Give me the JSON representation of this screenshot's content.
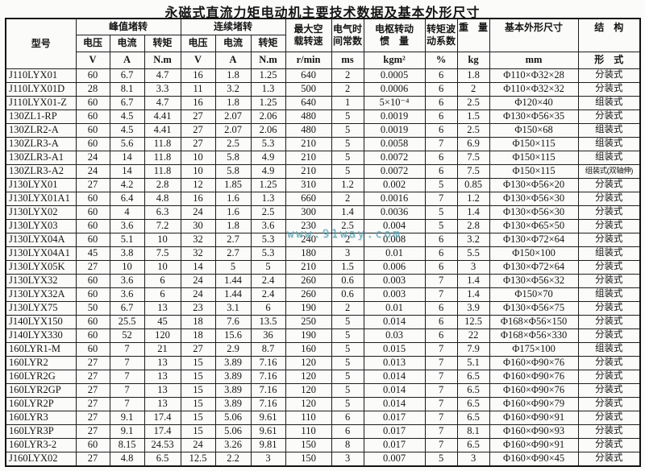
{
  "title": "永磁式直流力矩电动机主要技术数据及基本外形尺寸",
  "watermark": {
    "text": "www.91way.com",
    "color": "#58A4B4"
  },
  "table": {
    "header": {
      "model": "型号",
      "peak_group": "峰值堵转",
      "cont_group": "连续堵转",
      "voltage": "电压",
      "current": "电流",
      "torque": "转矩",
      "volt_unit": "V",
      "curr_unit": "A",
      "torque_unit": "N.m",
      "speed_label": "最大空\n载转速",
      "speed_unit": "r/min",
      "time_label": "电气时\n间常数",
      "time_unit": "ms",
      "inertia_label": "电枢转动\n惯　量",
      "inertia_unit": "kgm²",
      "ripple_label": "转矩波\n动系数",
      "ripple_unit": "%",
      "weight_label": "重　量",
      "weight_unit": "kg",
      "dim_label": "基本外形尺寸",
      "dim_unit": "mm",
      "structure_label": "结　构",
      "structure_unit": "形　式"
    },
    "columns": [
      "model",
      "peak-voltage",
      "peak-current",
      "peak-torque",
      "cont-voltage",
      "cont-current",
      "cont-torque",
      "max-speed",
      "time-constant",
      "inertia",
      "ripple-coefficient",
      "weight",
      "dimensions",
      "structure"
    ],
    "rows": [
      [
        "J110LYX01",
        "60",
        "6.7",
        "4.7",
        "16",
        "1.8",
        "1.25",
        "640",
        "2",
        "0.0005",
        "6",
        "1.8",
        "Φ110×Φ32×28",
        "分装式"
      ],
      [
        "J110LYX01D",
        "28",
        "8.1",
        "3.3",
        "11",
        "3.2",
        "1.3",
        "500",
        "2",
        "0.0006",
        "6",
        "2",
        "Φ110×Φ32×32",
        "分装式"
      ],
      [
        "J110LYX01-Z",
        "60",
        "6.7",
        "4.7",
        "16",
        "1.8",
        "1.25",
        "640",
        "1",
        "5×10⁻⁴",
        "6",
        "2.5",
        "Φ120×40",
        "组装式"
      ],
      [
        "130ZL1-RP",
        "60",
        "4.5",
        "4.41",
        "27",
        "2.07",
        "2.06",
        "480",
        "5",
        "0.0019",
        "6",
        "1.5",
        "Φ130×Φ56×35",
        "分装式"
      ],
      [
        "130ZLR2-A",
        "60",
        "4.5",
        "4.41",
        "27",
        "2.07",
        "2.06",
        "480",
        "5",
        "0.0019",
        "6",
        "2.5",
        "Φ150×68",
        "组装式"
      ],
      [
        "130ZLR3-A",
        "60",
        "5.6",
        "11.8",
        "27",
        "2.5",
        "5.3",
        "210",
        "5",
        "0.0058",
        "7",
        "6.9",
        "Φ150×115",
        "组装式"
      ],
      [
        "130ZLR3-A1",
        "24",
        "14",
        "11.8",
        "10",
        "5.8",
        "4.9",
        "210",
        "5",
        "0.0072",
        "6",
        "7.5",
        "Φ150×115",
        "组装式"
      ],
      [
        "130ZLR3-A2",
        "24",
        "14",
        "11.8",
        "10",
        "5.8",
        "4.9",
        "210",
        "5",
        "0.0072",
        "6",
        "7.5",
        "Φ150×115",
        "组装式(双轴伸)"
      ],
      [
        "J130LYX01",
        "27",
        "4.2",
        "2.8",
        "12",
        "1.85",
        "1.25",
        "310",
        "1.2",
        "0.002",
        "5",
        "0.85",
        "Φ130×Φ56×20",
        "分装式"
      ],
      [
        "J130LYX01A1",
        "60",
        "6.4",
        "4.8",
        "16",
        "1.6",
        "1.3",
        "660",
        "2",
        "0.0016",
        "7",
        "1.2",
        "Φ130×Φ56×30",
        "分装式"
      ],
      [
        "J130LYX02",
        "60",
        "4",
        "6.3",
        "24",
        "1.6",
        "2.5",
        "300",
        "1.4",
        "0.0036",
        "5",
        "1.4",
        "Φ130×Φ56×30",
        "分装式"
      ],
      [
        "J130LYX03",
        "60",
        "3.6",
        "7.2",
        "30",
        "1.8",
        "3.6",
        "230",
        "2.5",
        "0.004",
        "5",
        "2.8",
        "Φ130×Φ65×50",
        "分装式"
      ],
      [
        "J130LYX04A",
        "60",
        "5.1",
        "10",
        "32",
        "2.7",
        "5.3",
        "240",
        "2",
        "0.008",
        "6",
        "3.2",
        "Φ130×Φ72×64",
        "分装式"
      ],
      [
        "J130LYX04A1",
        "45",
        "3.8",
        "7.5",
        "32",
        "2.7",
        "5.3",
        "180",
        "3",
        "0.01",
        "6",
        "5.5",
        "Φ150×100",
        "组装式"
      ],
      [
        "J130LYX05K",
        "27",
        "10",
        "10",
        "14",
        "5",
        "5",
        "210",
        "1.5",
        "0.006",
        "6",
        "3",
        "Φ130×Φ72×64",
        "分装式"
      ],
      [
        "J130LYX32",
        "60",
        "3.6",
        "6",
        "24",
        "1.44",
        "2.4",
        "260",
        "0.6",
        "0.003",
        "7",
        "1.4",
        "Φ130×Φ56×32",
        "分装式"
      ],
      [
        "J130LYX32A",
        "60",
        "3.6",
        "6",
        "24",
        "1.44",
        "2.4",
        "260",
        "0.6",
        "0.003",
        "7",
        "1.4",
        "Φ150×70",
        "组装式"
      ],
      [
        "J130LYX75",
        "50",
        "6.7",
        "13",
        "23",
        "3.1",
        "6",
        "190",
        "2",
        "0.01",
        "6",
        "3.9",
        "Φ130×Φ56×75",
        "分装式"
      ],
      [
        "J140LYX150",
        "60",
        "25.5",
        "45",
        "18",
        "7.6",
        "13.5",
        "250",
        "5",
        "0.014",
        "6",
        "12.5",
        "Φ168×Φ56×150",
        "分装式"
      ],
      [
        "J140LYX330",
        "60",
        "52",
        "120",
        "18",
        "15.6",
        "36",
        "190",
        "5",
        "0.03",
        "6",
        "22",
        "Φ168×Φ56×330",
        "分装式"
      ],
      [
        "160LYR1-M",
        "60",
        "7",
        "21",
        "27",
        "2.9",
        "8.7",
        "160",
        "5",
        "0.015",
        "7",
        "7.9",
        "Φ175×100",
        "组装式"
      ],
      [
        "160LYR2",
        "27",
        "7",
        "13",
        "15",
        "3.89",
        "7.16",
        "120",
        "5",
        "0.013",
        "7",
        "5.1",
        "Φ160×Φ90×76",
        "分装式"
      ],
      [
        "160LYR2G",
        "27",
        "7",
        "13",
        "15",
        "3.89",
        "7.16",
        "120",
        "5",
        "0.014",
        "7",
        "6.5",
        "Φ160×Φ90×76",
        "分装式"
      ],
      [
        "160LYR2GP",
        "27",
        "7",
        "13",
        "15",
        "3.89",
        "7.16",
        "120",
        "5",
        "0.014",
        "7",
        "6.5",
        "Φ160×Φ90×76",
        "分装式"
      ],
      [
        "160LYR2P",
        "27",
        "7",
        "13",
        "15",
        "3.89",
        "7.16",
        "120",
        "5",
        "0.014",
        "7",
        "6.5",
        "Φ160×Φ90×79",
        "分装式"
      ],
      [
        "160LYR3",
        "27",
        "9.1",
        "17.4",
        "15",
        "5.06",
        "9.61",
        "110",
        "6",
        "0.017",
        "7",
        "6.5",
        "Φ160×Φ90×91",
        "分装式"
      ],
      [
        "160LYR3P",
        "27",
        "9.1",
        "17.4",
        "15",
        "5.06",
        "9.61",
        "110",
        "6",
        "0.017",
        "7",
        "8.1",
        "Φ160×Φ90×93",
        "分装式"
      ],
      [
        "160LYR3-2",
        "60",
        "8.15",
        "24.53",
        "24",
        "3.26",
        "9.81",
        "150",
        "8",
        "0.017",
        "7",
        "6.5",
        "Φ160×Φ90×91",
        "分装式"
      ],
      [
        "J160LYX02",
        "27",
        "4.8",
        "6.5",
        "12.5",
        "2.2",
        "3",
        "150",
        "3",
        "0.007",
        "5",
        "3",
        "Φ160×Φ90×45",
        "分装式"
      ]
    ]
  }
}
